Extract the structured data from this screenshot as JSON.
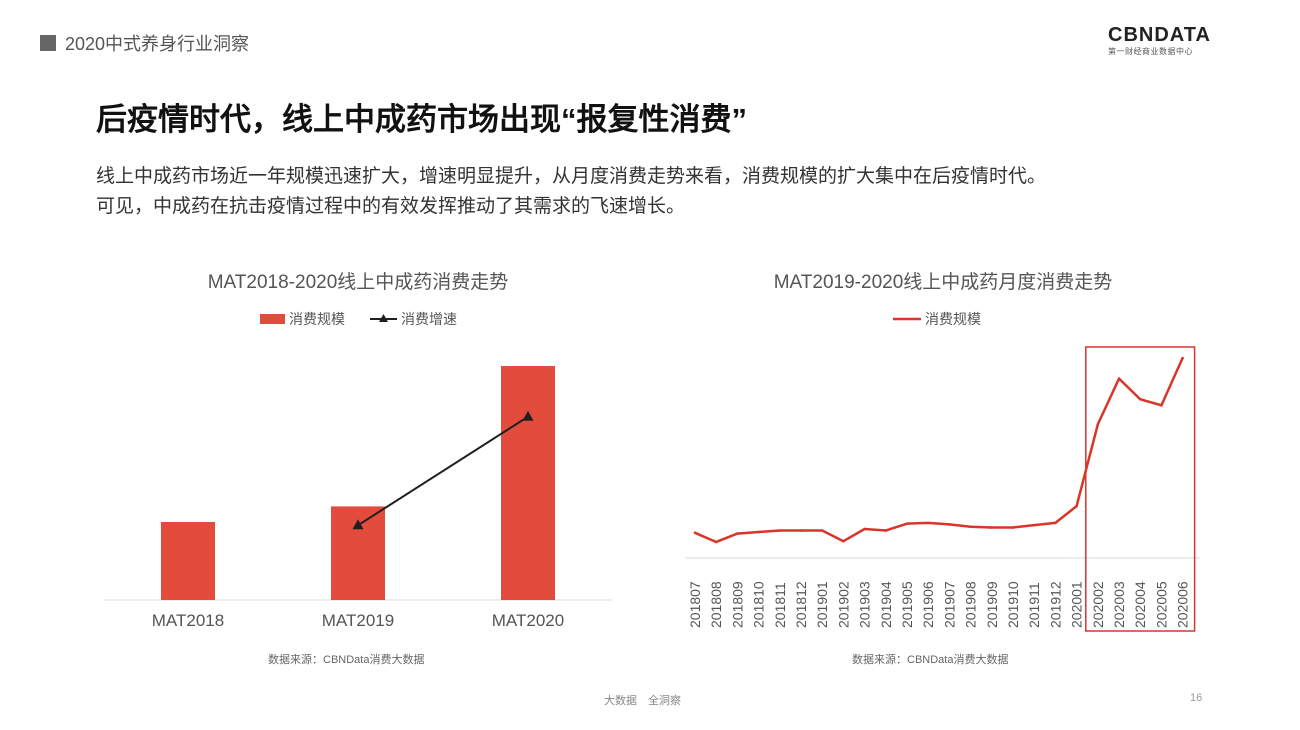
{
  "header": {
    "tag": "2020中式养身行业洞察"
  },
  "brand": {
    "logo": "CBNDATA",
    "tagline": "第一财经商业数据中心"
  },
  "title": "后疫情时代，线上中成药市场出现“报复性消费”",
  "description": [
    "线上中成药市场近一年规模迅速扩大，增速明显提升，从月度消费走势来看，消费规模的扩大集中在后疫情时代。",
    "可见，中成药在抗击疫情过程中的有效发挥推动了其需求的飞速增长。"
  ],
  "colors": {
    "bar": "#e34b3d",
    "line": "#1f1f1f",
    "trend": "#d9352a",
    "highlight": "#d9352a"
  },
  "chart_data": [
    {
      "type": "bar",
      "title": "MAT2018-2020线上中成药消费走势",
      "categories": [
        "MAT2018",
        "MAT2019",
        "MAT2020"
      ],
      "series": [
        {
          "name": "消费规模",
          "type": "bar",
          "values": [
            1.0,
            1.2,
            3.0
          ]
        },
        {
          "name": "消费增速",
          "type": "line",
          "values": [
            null,
            0.2,
            1.5
          ]
        }
      ],
      "legend": "top-center",
      "grid": false,
      "source": "数据来源：CBNData消费大数据"
    },
    {
      "type": "line",
      "title": "MAT2019-2020线上中成药月度消费走势",
      "x": [
        "201807",
        "201808",
        "201809",
        "201810",
        "201811",
        "201812",
        "201901",
        "201902",
        "201903",
        "201904",
        "201905",
        "201906",
        "201907",
        "201908",
        "201909",
        "201910",
        "201911",
        "201912",
        "202001",
        "202002",
        "202003",
        "202004",
        "202005",
        "202006"
      ],
      "series": [
        {
          "name": "消费规模",
          "values": [
            33,
            21,
            32,
            34,
            36,
            36,
            36,
            22,
            38,
            36,
            45,
            46,
            44,
            41,
            40,
            40,
            43,
            46,
            68,
            175,
            235,
            208,
            200,
            262
          ]
        }
      ],
      "highlight": {
        "from": "202002",
        "to": "202006"
      },
      "legend": "top-center",
      "grid": false,
      "source": "数据来源：CBNData消费大数据"
    }
  ],
  "footer": {
    "text": "大数据　全洞察",
    "page": "16"
  }
}
